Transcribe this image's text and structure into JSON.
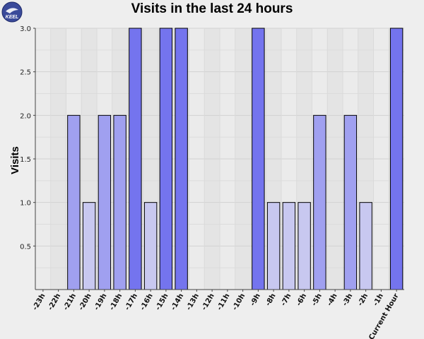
{
  "logo": {
    "text": "KEEL",
    "icon": "keel-logo-icon",
    "color": "#3a4a9a"
  },
  "chart_data": {
    "type": "bar",
    "title": "Visits in the last 24 hours",
    "xlabel": "",
    "ylabel": "Visits",
    "ylim": [
      0,
      3
    ],
    "yticks": [
      "0.5",
      "1.0",
      "1.5",
      "2.0",
      "2.5",
      "3.0"
    ],
    "grid": true,
    "categories": [
      "-23h",
      "-22h",
      "-21h",
      "-20h",
      "-19h",
      "-18h",
      "-17h",
      "-16h",
      "-15h",
      "-14h",
      "-13h",
      "-12h",
      "-11h",
      "-10h",
      "-9h",
      "-8h",
      "-7h",
      "-6h",
      "-5h",
      "-4h",
      "-3h",
      "-2h",
      "-1h",
      "Current Hour"
    ],
    "values": [
      0,
      0,
      2,
      1,
      2,
      2,
      3,
      1,
      3,
      3,
      0,
      0,
      0,
      0,
      3,
      1,
      1,
      1,
      2,
      0,
      2,
      1,
      0,
      3
    ],
    "colors": {
      "1": "#c8c8f0",
      "2": "#a0a0f0",
      "3": "#7474ee"
    }
  }
}
